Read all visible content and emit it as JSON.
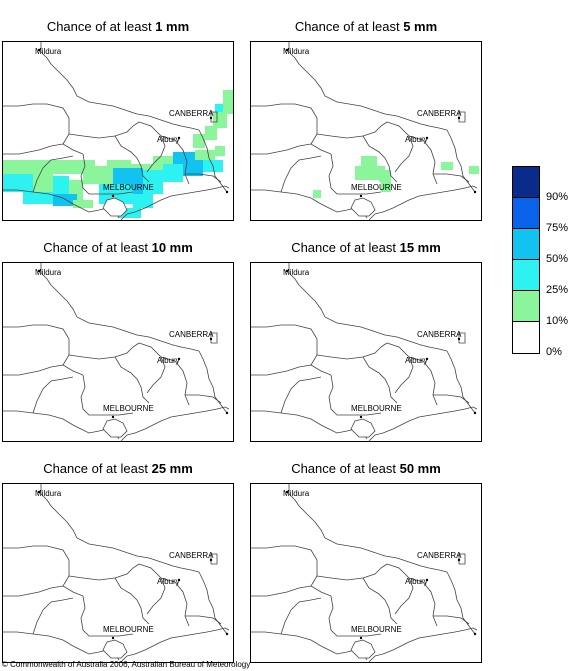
{
  "panels": [
    {
      "title_prefix": "Chance of at least ",
      "amount": "1 mm",
      "id": "1mm"
    },
    {
      "title_prefix": "Chance of at least ",
      "amount": "5 mm",
      "id": "5mm"
    },
    {
      "title_prefix": "Chance of at least ",
      "amount": "10 mm",
      "id": "10mm"
    },
    {
      "title_prefix": "Chance of at least ",
      "amount": "15 mm",
      "id": "15mm"
    },
    {
      "title_prefix": "Chance of at least ",
      "amount": "25 mm",
      "id": "25mm"
    },
    {
      "title_prefix": "Chance of at least ",
      "amount": "50 mm",
      "id": "50mm"
    }
  ],
  "places": {
    "mildura": "Mildura",
    "canberra": "CANBERRA",
    "albury": "Albury",
    "melbourne": "MELBOURNE"
  },
  "legend": {
    "labels": [
      "90%",
      "75%",
      "50%",
      "25%",
      "10%",
      "0%"
    ],
    "colors": [
      "#0a2a8c",
      "#0a62e8",
      "#12c2f0",
      "#2ef2f2",
      "#8af59a",
      "#ffffff"
    ]
  },
  "copyright": "© Commonwealth of Australia 2006, Australian Bureau of Meteorology"
}
